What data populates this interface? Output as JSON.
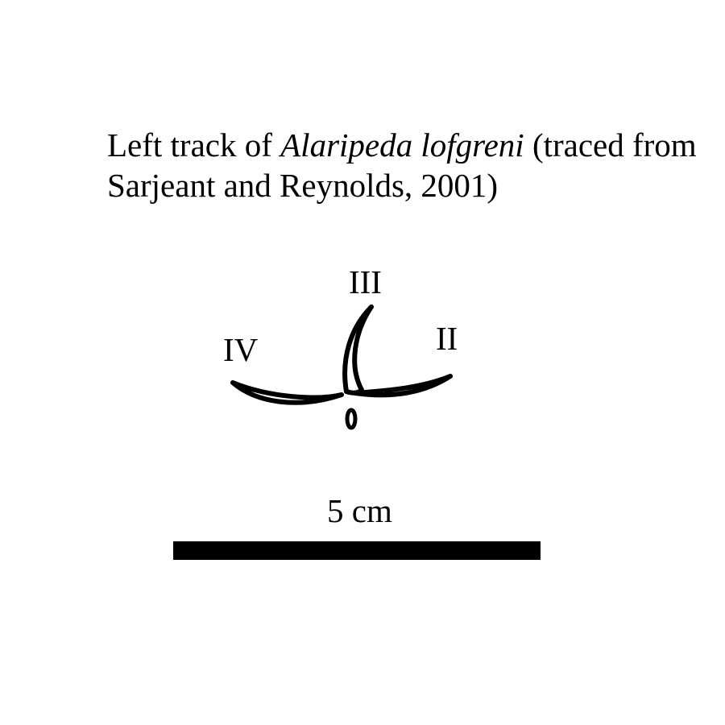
{
  "caption": {
    "prefix": "Left track of ",
    "species": "Alaripeda lofgreni",
    "suffix": " (traced from Sarjeant and Reynolds, 2001)"
  },
  "digits": {
    "iii": "III",
    "iv": "IV",
    "ii": "II"
  },
  "scale": {
    "label": "5 cm"
  },
  "colors": {
    "ink": "#000000",
    "background": "#ffffff"
  }
}
